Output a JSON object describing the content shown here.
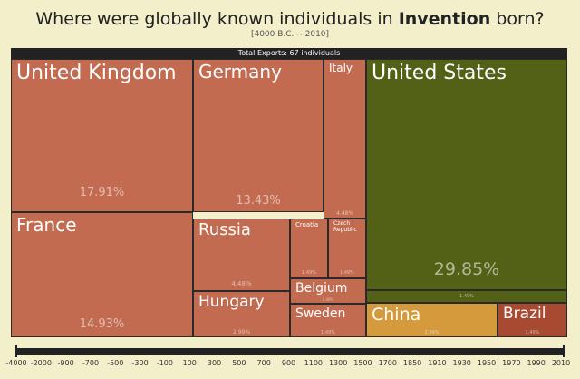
{
  "header": {
    "title_pre": "Where were globally known individuals in ",
    "title_em": "Invention",
    "title_post": " born?",
    "subtitle": "[4000 B.C. -- 2010]",
    "total": "Total Exports: 67 individuals"
  },
  "chart_data": {
    "type": "treemap",
    "items": [
      {
        "name": "United Kingdom",
        "pct": "17.91%",
        "value": 17.91,
        "color": "#c26b50"
      },
      {
        "name": "Germany",
        "pct": "13.43%",
        "value": 13.43,
        "color": "#c26b50"
      },
      {
        "name": "Italy",
        "pct": "4.48%",
        "value": 4.48,
        "color": "#c26b50"
      },
      {
        "name": "United States",
        "pct": "29.85%",
        "value": 29.85,
        "color": "#536116"
      },
      {
        "name": "France",
        "pct": "14.93%",
        "value": 14.93,
        "color": "#c26b50"
      },
      {
        "name": "Russia",
        "pct": "4.48%",
        "value": 4.48,
        "color": "#c26b50"
      },
      {
        "name": "Croatia",
        "pct": "1.49%",
        "value": 1.49,
        "color": "#c26b50"
      },
      {
        "name": "Czech Republic",
        "pct": "1.49%",
        "value": 1.49,
        "color": "#c26b50"
      },
      {
        "name": "Belgium",
        "pct": "1.49%",
        "value": 1.49,
        "color": "#c26b50"
      },
      {
        "name": "Hungary",
        "pct": "2.99%",
        "value": 2.99,
        "color": "#c26b50"
      },
      {
        "name": "Sweden",
        "pct": "1.49%",
        "value": 1.49,
        "color": "#c26b50"
      },
      {
        "name": "",
        "pct": "1.49%",
        "value": 1.49,
        "color": "#536116"
      },
      {
        "name": "China",
        "pct": "2.99%",
        "value": 2.99,
        "color": "#d59a3c"
      },
      {
        "name": "Brazil",
        "pct": "1.49%",
        "value": 1.49,
        "color": "#a84a32"
      }
    ],
    "timeline_ticks": [
      "-4000",
      "-2000",
      "-900",
      "-700",
      "-500",
      "-300",
      "-100",
      "100",
      "300",
      "500",
      "700",
      "900",
      "1100",
      "1300",
      "1500",
      "1700",
      "1850",
      "1910",
      "1930",
      "1950",
      "1970",
      "1990",
      "2010"
    ]
  }
}
